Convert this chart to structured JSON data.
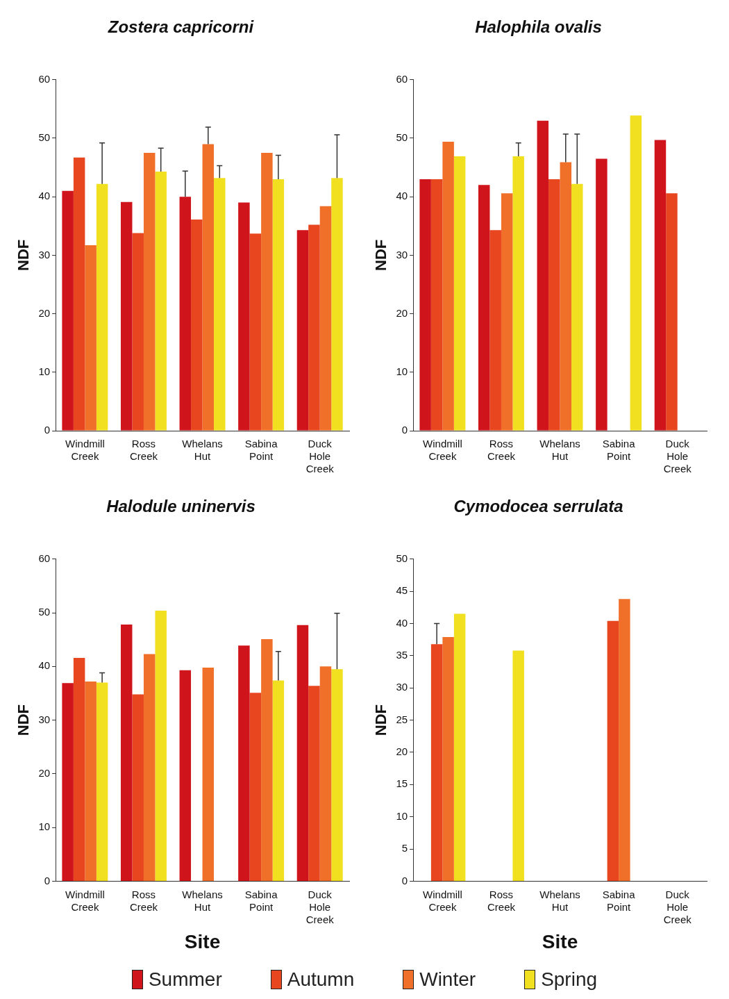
{
  "chart_data": [
    {
      "type": "bar",
      "title": "Zostera capricorni",
      "ylabel": "NDF",
      "categories": [
        "Windmill Creek",
        "Ross Creek",
        "Whelans Hut",
        "Sabina Point",
        "Duck Hole Creek"
      ],
      "ylim": [
        0,
        60
      ],
      "yticks": [
        0,
        10,
        20,
        30,
        40,
        50,
        60
      ],
      "series": [
        {
          "color": "#d0141c",
          "values": [
            41.0,
            39.1,
            40.0,
            39.0,
            34.3
          ],
          "errors": [
            null,
            null,
            [
              40.0,
              44.4
            ],
            null,
            null
          ]
        },
        {
          "color": "#e8461e",
          "values": [
            46.7,
            33.8,
            36.1,
            33.7,
            35.2
          ]
        },
        {
          "color": "#f0702a",
          "values": [
            31.7,
            47.5,
            49.0,
            47.5,
            38.4
          ],
          "errors": [
            null,
            null,
            [
              49.0,
              51.9
            ],
            null,
            null
          ]
        },
        {
          "color": "#f0e020",
          "values": [
            42.2,
            44.3,
            43.2,
            43.0,
            43.2
          ],
          "errors": [
            [
              42.2,
              49.2
            ],
            [
              44.3,
              48.3
            ],
            [
              43.2,
              45.3
            ],
            [
              43.0,
              47.1
            ],
            [
              43.2,
              50.6
            ]
          ]
        }
      ]
    },
    {
      "type": "bar",
      "title": "Halophila ovalis",
      "ylabel": "NDF",
      "categories": [
        "Windmill Creek",
        "Ross Creek",
        "Whelans Hut",
        "Sabina Point",
        "Duck Hole Creek"
      ],
      "ylim": [
        0,
        60
      ],
      "yticks": [
        0,
        10,
        20,
        30,
        40,
        50,
        60
      ],
      "series": [
        {
          "color": "#d0141c",
          "values": [
            43.0,
            42.0,
            53.0,
            46.5,
            49.7
          ]
        },
        {
          "color": "#e8461e",
          "values": [
            43.0,
            34.3,
            43.0,
            null,
            40.6
          ]
        },
        {
          "color": "#f0702a",
          "values": [
            49.4,
            40.6,
            45.9,
            null,
            null
          ],
          "errors": [
            null,
            null,
            [
              45.9,
              50.7
            ],
            null,
            null
          ]
        },
        {
          "color": "#f0e020",
          "values": [
            46.9,
            46.9,
            42.2,
            53.9,
            null
          ],
          "errors": [
            null,
            [
              46.9,
              49.2
            ],
            [
              42.2,
              50.7
            ],
            null,
            null
          ]
        }
      ]
    },
    {
      "type": "bar",
      "title": "Halodule uninervis",
      "ylabel": "NDF",
      "xlabel": "Site",
      "categories": [
        "Windmill Creek",
        "Ross Creek",
        "Whelans Hut",
        "Sabina Point",
        "Duck Hole Creek"
      ],
      "ylim": [
        0,
        60
      ],
      "yticks": [
        0,
        10,
        20,
        30,
        40,
        50,
        60
      ],
      "series": [
        {
          "color": "#d0141c",
          "values": [
            36.9,
            47.8,
            39.3,
            43.9,
            47.7
          ]
        },
        {
          "color": "#e8461e",
          "values": [
            41.6,
            34.8,
            null,
            35.1,
            36.4
          ]
        },
        {
          "color": "#f0702a",
          "values": [
            37.2,
            42.3,
            39.8,
            45.1,
            40.0
          ]
        },
        {
          "color": "#f0e020",
          "values": [
            37.0,
            50.4,
            null,
            37.4,
            39.5
          ],
          "errors": [
            [
              37.0,
              38.8
            ],
            null,
            null,
            [
              37.4,
              42.8
            ],
            [
              39.5,
              49.9
            ]
          ]
        }
      ]
    },
    {
      "type": "bar",
      "title": "Cymodocea serrulata",
      "ylabel": "NDF",
      "xlabel": "Site",
      "categories": [
        "Windmill Creek",
        "Ross Creek",
        "Whelans Hut",
        "Sabina Point",
        "Duck Hole Creek"
      ],
      "ylim": [
        0,
        50
      ],
      "yticks": [
        0,
        5,
        10,
        15,
        20,
        25,
        30,
        35,
        40,
        45,
        50
      ],
      "legend": "bottom",
      "series": [
        {
          "name": "Summer",
          "color": "#d0141c",
          "values": [
            null,
            null,
            null,
            null,
            null
          ]
        },
        {
          "name": "Autumn",
          "color": "#e8461e",
          "values": [
            36.8,
            null,
            null,
            40.4,
            null
          ],
          "errors": [
            [
              36.8,
              40.0
            ],
            null,
            null,
            null,
            null
          ]
        },
        {
          "name": "Winter",
          "color": "#f0702a",
          "values": [
            37.9,
            null,
            null,
            43.8,
            null
          ]
        },
        {
          "name": "Spring",
          "color": "#f0e020",
          "values": [
            41.5,
            35.8,
            null,
            null,
            null
          ]
        }
      ]
    }
  ]
}
